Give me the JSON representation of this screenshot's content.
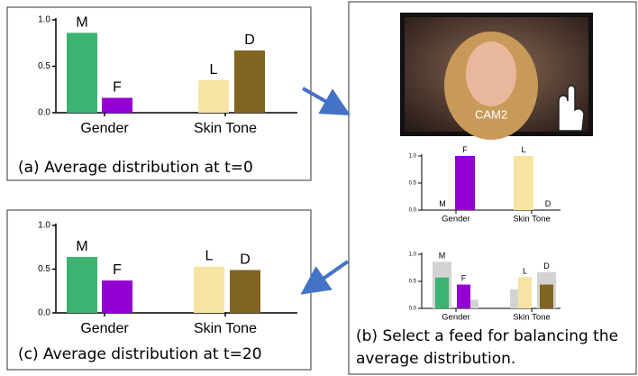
{
  "chart_data": [
    {
      "type": "bar",
      "ylim": [
        0,
        1
      ],
      "yticks": [
        {
          "value": 0,
          "label": "0.0"
        },
        {
          "value": 0.5,
          "label": "0.5"
        },
        {
          "value": 1,
          "label": "1.0"
        }
      ],
      "groups": [
        {
          "name": "Gender",
          "bars": [
            {
              "label": "M",
              "value": 0.86,
              "color": "#3cb371"
            },
            {
              "label": "F",
              "value": 0.16,
              "color": "#9400d3"
            }
          ]
        },
        {
          "name": "Skin Tone",
          "bars": [
            {
              "label": "L",
              "value": 0.35,
              "color": "#f8e4a2"
            },
            {
              "label": "D",
              "value": 0.67,
              "color": "#806420"
            }
          ]
        }
      ]
    },
    {
      "type": "bar",
      "ylim": [
        0,
        1
      ],
      "yticks": [
        {
          "value": 0,
          "label": "0.0"
        },
        {
          "value": 0.5,
          "label": "0.5"
        },
        {
          "value": 1,
          "label": "1.0"
        }
      ],
      "groups": [
        {
          "name": "Gender",
          "bars": [
            {
              "label": "M",
              "value": 0,
              "color": "#3cb371"
            },
            {
              "label": "F",
              "value": 1,
              "color": "#9400d3"
            }
          ]
        },
        {
          "name": "Skin Tone",
          "bars": [
            {
              "label": "L",
              "value": 1,
              "color": "#f8e4a2"
            },
            {
              "label": "D",
              "value": 0,
              "color": "#806420"
            }
          ]
        }
      ]
    },
    {
      "type": "bar",
      "ylim": [
        0,
        1
      ],
      "yticks": [
        {
          "value": 0,
          "label": "0.0"
        },
        {
          "value": 0.5,
          "label": "0.5"
        },
        {
          "value": 1,
          "label": "1.0"
        }
      ],
      "previous_color": "#d3d3d3",
      "groups": [
        {
          "name": "Gender",
          "bars": [
            {
              "label": "M",
              "value": 0.57,
              "previous": 0.86,
              "color": "#3cb371"
            },
            {
              "label": "F",
              "value": 0.44,
              "previous": 0.16,
              "color": "#9400d3"
            }
          ]
        },
        {
          "name": "Skin Tone",
          "bars": [
            {
              "label": "L",
              "value": 0.58,
              "previous": 0.35,
              "color": "#f8e4a2"
            },
            {
              "label": "D",
              "value": 0.44,
              "previous": 0.67,
              "color": "#806420"
            }
          ]
        }
      ]
    },
    {
      "type": "bar",
      "ylim": [
        0,
        1
      ],
      "yticks": [
        {
          "value": 0,
          "label": "0.0"
        },
        {
          "value": 0.5,
          "label": "0.5"
        },
        {
          "value": 1,
          "label": "1.0"
        }
      ],
      "groups": [
        {
          "name": "Gender",
          "bars": [
            {
              "label": "M",
              "value": 0.64,
              "color": "#3cb371"
            },
            {
              "label": "F",
              "value": 0.37,
              "color": "#9400d3"
            }
          ]
        },
        {
          "name": "Skin Tone",
          "bars": [
            {
              "label": "L",
              "value": 0.53,
              "color": "#f8e4a2"
            },
            {
              "label": "D",
              "value": 0.49,
              "color": "#806420"
            }
          ]
        }
      ]
    }
  ],
  "captions": {
    "a": "(a) Average distribution at t=0",
    "b": [
      "(b) Select a feed for balancing the",
      "average distribution."
    ],
    "c": "(c) Average distribution at t=20"
  },
  "camera_label": "CAM2"
}
